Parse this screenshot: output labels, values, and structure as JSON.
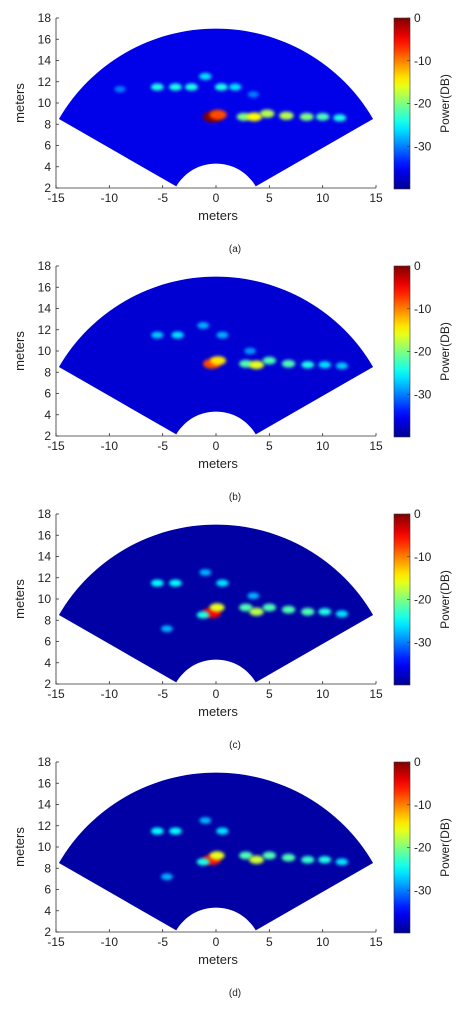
{
  "chart_data": [
    {
      "type": "heatmap",
      "panel_label": "(a)",
      "xlabel": "meters",
      "ylabel": "meters",
      "xlim": [
        -15,
        15
      ],
      "ylim": [
        2,
        18
      ],
      "xticks": [
        -15,
        -10,
        -5,
        0,
        5,
        10,
        15
      ],
      "yticks": [
        2,
        4,
        6,
        8,
        10,
        12,
        14,
        16,
        18
      ],
      "colorbar_label": "Power(DB)",
      "colorbar_range": [
        -40,
        0
      ],
      "colorbar_ticks": [
        0,
        -10,
        -20,
        -30
      ],
      "sector": {
        "min_range_m": 4.3,
        "max_range_m": 17,
        "half_angle_deg": 60
      },
      "background_level": -36,
      "hotspots": [
        {
          "x": -0.3,
          "y": 8.7,
          "level": 0
        },
        {
          "x": 0.2,
          "y": 8.9,
          "level": -8
        },
        {
          "x": 2.6,
          "y": 8.7,
          "level": -20
        },
        {
          "x": 3.6,
          "y": 8.7,
          "level": -15
        },
        {
          "x": 4.8,
          "y": 9.0,
          "level": -18
        },
        {
          "x": 6.6,
          "y": 8.8,
          "level": -18
        },
        {
          "x": 8.5,
          "y": 8.7,
          "level": -20
        },
        {
          "x": 10.0,
          "y": 8.7,
          "level": -22
        },
        {
          "x": 11.6,
          "y": 8.6,
          "level": -24
        },
        {
          "x": -5.5,
          "y": 11.5,
          "level": -24
        },
        {
          "x": -3.8,
          "y": 11.5,
          "level": -24
        },
        {
          "x": -2.3,
          "y": 11.5,
          "level": -24
        },
        {
          "x": 0.5,
          "y": 11.5,
          "level": -24
        },
        {
          "x": 1.8,
          "y": 11.5,
          "level": -26
        },
        {
          "x": -1.0,
          "y": 12.5,
          "level": -26
        },
        {
          "x": -9.0,
          "y": 11.3,
          "level": -30
        },
        {
          "x": 3.5,
          "y": 10.8,
          "level": -30
        }
      ]
    },
    {
      "type": "heatmap",
      "panel_label": "(b)",
      "xlabel": "meters",
      "ylabel": "meters",
      "xlim": [
        -15,
        15
      ],
      "ylim": [
        2,
        18
      ],
      "xticks": [
        -15,
        -10,
        -5,
        0,
        5,
        10,
        15
      ],
      "yticks": [
        2,
        4,
        6,
        8,
        10,
        12,
        14,
        16,
        18
      ],
      "colorbar_label": "Power(DB)",
      "colorbar_range": [
        -40,
        0
      ],
      "colorbar_ticks": [
        0,
        -10,
        -20,
        -30
      ],
      "sector": {
        "min_range_m": 4.3,
        "max_range_m": 17,
        "half_angle_deg": 60
      },
      "background_level": -37,
      "hotspots": [
        {
          "x": -0.4,
          "y": 8.8,
          "level": -8
        },
        {
          "x": 0.2,
          "y": 9.1,
          "level": -14
        },
        {
          "x": 2.8,
          "y": 8.8,
          "level": -22
        },
        {
          "x": 3.8,
          "y": 8.7,
          "level": -16
        },
        {
          "x": 5.0,
          "y": 9.1,
          "level": -22
        },
        {
          "x": 6.8,
          "y": 8.8,
          "level": -22
        },
        {
          "x": 8.6,
          "y": 8.7,
          "level": -24
        },
        {
          "x": 10.2,
          "y": 8.7,
          "level": -26
        },
        {
          "x": 11.8,
          "y": 8.6,
          "level": -27
        },
        {
          "x": -5.5,
          "y": 11.5,
          "level": -27
        },
        {
          "x": -3.6,
          "y": 11.5,
          "level": -26
        },
        {
          "x": 0.6,
          "y": 11.5,
          "level": -28
        },
        {
          "x": -1.2,
          "y": 12.4,
          "level": -28
        },
        {
          "x": 3.2,
          "y": 10.0,
          "level": -29
        }
      ]
    },
    {
      "type": "heatmap",
      "panel_label": "(c)",
      "xlabel": "meters",
      "ylabel": "meters",
      "xlim": [
        -15,
        15
      ],
      "ylim": [
        2,
        18
      ],
      "xticks": [
        -15,
        -10,
        -5,
        0,
        5,
        10,
        15
      ],
      "yticks": [
        2,
        4,
        6,
        8,
        10,
        12,
        14,
        16,
        18
      ],
      "colorbar_label": "Power(DB)",
      "colorbar_range": [
        -40,
        0
      ],
      "colorbar_ticks": [
        0,
        -10,
        -20,
        -30
      ],
      "sector": {
        "min_range_m": 4.3,
        "max_range_m": 17,
        "half_angle_deg": 60
      },
      "background_level": -39,
      "hotspots": [
        {
          "x": -0.4,
          "y": 8.7,
          "level": -5
        },
        {
          "x": 0.1,
          "y": 9.2,
          "level": -16
        },
        {
          "x": -1.2,
          "y": 8.5,
          "level": -24
        },
        {
          "x": 2.8,
          "y": 9.2,
          "level": -22
        },
        {
          "x": 3.8,
          "y": 8.8,
          "level": -18
        },
        {
          "x": 5.0,
          "y": 9.2,
          "level": -22
        },
        {
          "x": 6.8,
          "y": 9.0,
          "level": -22
        },
        {
          "x": 8.6,
          "y": 8.8,
          "level": -22
        },
        {
          "x": 10.2,
          "y": 8.8,
          "level": -24
        },
        {
          "x": 11.8,
          "y": 8.6,
          "level": -26
        },
        {
          "x": -5.5,
          "y": 11.5,
          "level": -25
        },
        {
          "x": -3.8,
          "y": 11.5,
          "level": -25
        },
        {
          "x": 0.6,
          "y": 11.5,
          "level": -26
        },
        {
          "x": -1.0,
          "y": 12.5,
          "level": -28
        },
        {
          "x": -4.6,
          "y": 7.2,
          "level": -28
        },
        {
          "x": 3.5,
          "y": 10.3,
          "level": -28
        }
      ]
    },
    {
      "type": "heatmap",
      "panel_label": "(d)",
      "xlabel": "meters",
      "ylabel": "meters",
      "xlim": [
        -15,
        15
      ],
      "ylim": [
        2,
        18
      ],
      "xticks": [
        -15,
        -10,
        -5,
        0,
        5,
        10,
        15
      ],
      "yticks": [
        2,
        4,
        6,
        8,
        10,
        12,
        14,
        16,
        18
      ],
      "colorbar_label": "Power(DB)",
      "colorbar_range": [
        -40,
        0
      ],
      "colorbar_ticks": [
        0,
        -10,
        -20,
        -30
      ],
      "sector": {
        "min_range_m": 4.3,
        "max_range_m": 17,
        "half_angle_deg": 60
      },
      "background_level": -39,
      "hotspots": [
        {
          "x": -0.4,
          "y": 8.8,
          "level": -6
        },
        {
          "x": 0.1,
          "y": 9.2,
          "level": -16
        },
        {
          "x": -1.2,
          "y": 8.6,
          "level": -24
        },
        {
          "x": 2.8,
          "y": 9.2,
          "level": -22
        },
        {
          "x": 3.8,
          "y": 8.8,
          "level": -17
        },
        {
          "x": 5.0,
          "y": 9.2,
          "level": -22
        },
        {
          "x": 6.8,
          "y": 9.0,
          "level": -22
        },
        {
          "x": 8.6,
          "y": 8.8,
          "level": -23
        },
        {
          "x": 10.2,
          "y": 8.8,
          "level": -24
        },
        {
          "x": 11.8,
          "y": 8.6,
          "level": -26
        },
        {
          "x": -5.5,
          "y": 11.5,
          "level": -25
        },
        {
          "x": -3.8,
          "y": 11.5,
          "level": -25
        },
        {
          "x": 0.6,
          "y": 11.5,
          "level": -26
        },
        {
          "x": -1.0,
          "y": 12.5,
          "level": -28
        },
        {
          "x": -4.6,
          "y": 7.2,
          "level": -28
        }
      ]
    }
  ],
  "colors": {
    "jet": [
      "#00008f",
      "#0000ff",
      "#00ffff",
      "#ffff00",
      "#ff0000",
      "#800000"
    ],
    "axis": "#333333"
  }
}
